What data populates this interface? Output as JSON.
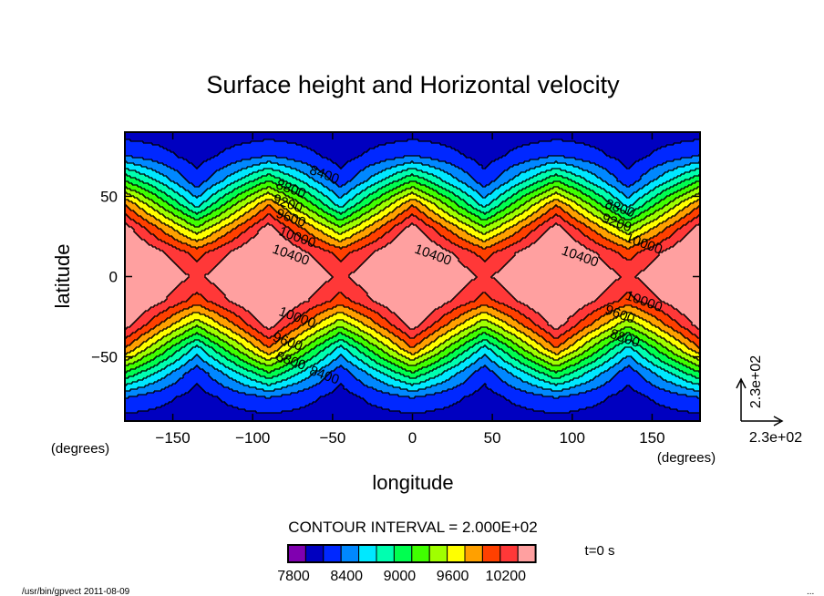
{
  "chart_data": {
    "type": "heatmap",
    "title": "Surface height and Horizontal velocity",
    "xlabel": "longitude",
    "ylabel": "latitude",
    "x_unit": "(degrees)",
    "y_unit": "(degrees)",
    "xlim": [
      -180,
      180
    ],
    "ylim": [
      -90,
      90
    ],
    "xticks": [
      -150,
      -100,
      -50,
      0,
      50,
      100,
      150
    ],
    "yticks": [
      -50,
      0,
      50
    ],
    "grid": false,
    "lons": [
      -180,
      -157.5,
      -135,
      -112.5,
      -90,
      -67.5,
      -45,
      -22.5,
      0,
      22.5,
      45,
      67.5,
      90,
      112.5,
      135,
      157.5,
      180
    ],
    "lats": [
      90,
      75,
      60,
      45,
      30,
      15,
      0,
      -15,
      -30,
      -45,
      -60,
      -75,
      -90
    ],
    "values": [
      [
        8100,
        8100,
        8100,
        8100,
        8100,
        8100,
        8100,
        8100,
        8100,
        8100,
        8100,
        8100,
        8100,
        8100,
        8100,
        8100,
        8100
      ],
      [
        8417,
        8267,
        8117,
        8267,
        8417,
        8267,
        8117,
        8267,
        8417,
        8267,
        8117,
        8267,
        8417,
        8267,
        8117,
        8267,
        8417
      ],
      [
        9184,
        8725,
        8266,
        8725,
        9184,
        8725,
        8266,
        8725,
        9184,
        8725,
        8266,
        8725,
        9184,
        8725,
        8266,
        8725,
        9184
      ],
      [
        9987,
        9350,
        8713,
        9350,
        9987,
        9350,
        8713,
        9350,
        9987,
        9350,
        8713,
        9350,
        9987,
        9350,
        8713,
        9350,
        9987
      ],
      [
        10509,
        9975,
        9441,
        9975,
        10509,
        9975,
        9441,
        9975,
        10509,
        9975,
        9441,
        9975,
        10509,
        9975,
        9441,
        9975,
        10509
      ],
      [
        10750,
        10433,
        10116,
        10433,
        10750,
        10433,
        10116,
        10433,
        10750,
        10433,
        10116,
        10433,
        10750,
        10433,
        10116,
        10433,
        10750
      ],
      [
        10850,
        10600,
        10350,
        10600,
        10850,
        10600,
        10350,
        10600,
        10850,
        10600,
        10350,
        10600,
        10850,
        10600,
        10350,
        10600,
        10850
      ],
      [
        10750,
        10433,
        10116,
        10433,
        10750,
        10433,
        10116,
        10433,
        10750,
        10433,
        10116,
        10433,
        10750,
        10433,
        10116,
        10433,
        10750
      ],
      [
        10509,
        9975,
        9441,
        9975,
        10509,
        9975,
        9441,
        9975,
        10509,
        9975,
        9441,
        9975,
        10509,
        9975,
        9441,
        9975,
        10509
      ],
      [
        9987,
        9350,
        8713,
        9350,
        9987,
        9350,
        8713,
        9350,
        9987,
        9350,
        8713,
        9350,
        9987,
        9350,
        8713,
        9350,
        9987
      ],
      [
        9184,
        8725,
        8266,
        8725,
        9184,
        8725,
        8266,
        8725,
        9184,
        8725,
        8266,
        8725,
        9184,
        8725,
        8266,
        8725,
        9184
      ],
      [
        8417,
        8267,
        8117,
        8267,
        8417,
        8267,
        8117,
        8267,
        8417,
        8267,
        8117,
        8267,
        8417,
        8267,
        8117,
        8267,
        8417
      ],
      [
        8100,
        8100,
        8100,
        8100,
        8100,
        8100,
        8100,
        8100,
        8100,
        8100,
        8100,
        8100,
        8100,
        8100,
        8100,
        8100,
        8100
      ]
    ],
    "contour_interval_text": "CONTOUR INTERVAL = 2.000E+02",
    "levels": [
      7800,
      8000,
      8200,
      8400,
      8600,
      8800,
      9000,
      9200,
      9400,
      9600,
      9800,
      10000,
      10200,
      10400
    ],
    "colors": [
      "#8000b0",
      "#0000c0",
      "#0028ff",
      "#0088ff",
      "#00e8ff",
      "#00ffb0",
      "#00ff50",
      "#40ff00",
      "#a0ff00",
      "#ffff00",
      "#ffa000",
      "#ff4000",
      "#ff3838",
      "#ffa0a0"
    ],
    "colorbar_labels": [
      "7800",
      "8400",
      "9000",
      "9600",
      "10200"
    ],
    "contour_labels": [
      {
        "text": "8400",
        "lon": -56,
        "lat": 61
      },
      {
        "text": "8800",
        "lon": -77,
        "lat": 52
      },
      {
        "text": "9200",
        "lon": -79,
        "lat": 43
      },
      {
        "text": "9600",
        "lon": -77,
        "lat": 34
      },
      {
        "text": "10000",
        "lon": -73,
        "lat": 22
      },
      {
        "text": "10400",
        "lon": -77,
        "lat": 11
      },
      {
        "text": "10400",
        "lon": 12,
        "lat": 11
      },
      {
        "text": "10400",
        "lon": 104,
        "lat": 10
      },
      {
        "text": "8800",
        "lon": 129,
        "lat": 40
      },
      {
        "text": "9200",
        "lon": 127,
        "lat": 31
      },
      {
        "text": "10000",
        "lon": 144,
        "lat": 18
      },
      {
        "text": "10000",
        "lon": 144,
        "lat": -18
      },
      {
        "text": "9600",
        "lon": 129,
        "lat": -26
      },
      {
        "text": "8800",
        "lon": 132,
        "lat": -41
      },
      {
        "text": "10000",
        "lon": -73,
        "lat": -28
      },
      {
        "text": "9600",
        "lon": -79,
        "lat": -43
      },
      {
        "text": "8800",
        "lon": -77,
        "lat": -55
      },
      {
        "text": "8400",
        "lon": -56,
        "lat": -64
      }
    ],
    "vector_reference": {
      "x_label": "2.3e+02",
      "y_label": "2.3e+02"
    },
    "time_label": "t=0 s"
  },
  "footer": {
    "program": "/usr/bin/gpvect  2011-08-09",
    "ellipsis": "..."
  }
}
